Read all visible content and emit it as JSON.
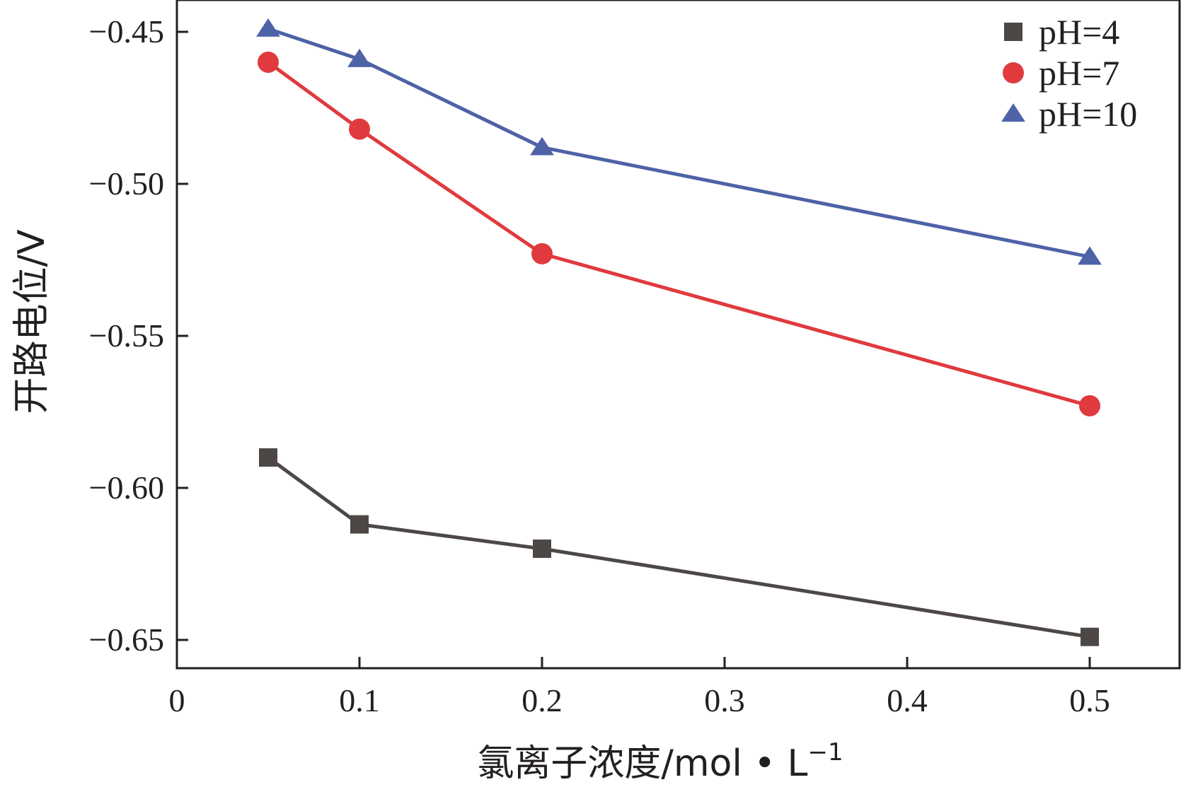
{
  "chart_data": {
    "type": "line",
    "xlabel": "氯离子浓度/mol • L",
    "xlabel_sup": "−1",
    "ylabel": "开路电位/V",
    "xlim": [
      0,
      0.55
    ],
    "ylim": [
      -0.66,
      -0.44
    ],
    "xticks": [
      0,
      0.1,
      0.2,
      0.3,
      0.4,
      0.5
    ],
    "xtick_labels": [
      "0",
      "0.1",
      "0.2",
      "0.3",
      "0.4",
      "0.5"
    ],
    "yticks": [
      -0.45,
      -0.5,
      -0.55,
      -0.6,
      -0.65
    ],
    "ytick_labels": [
      "−0.45",
      "−0.50",
      "−0.55",
      "−0.60",
      "−0.65"
    ],
    "grid": false,
    "legend_position": "top-right",
    "series": [
      {
        "name": "pH=4",
        "color": "#4d4846",
        "marker": "square",
        "x": [
          0.05,
          0.1,
          0.2,
          0.5
        ],
        "y": [
          -0.59,
          -0.612,
          -0.62,
          -0.649
        ]
      },
      {
        "name": "pH=7",
        "color": "#e03a3e",
        "marker": "circle",
        "x": [
          0.05,
          0.1,
          0.2,
          0.5
        ],
        "y": [
          -0.46,
          -0.482,
          -0.523,
          -0.573
        ]
      },
      {
        "name": "pH=10",
        "color": "#4e62a7",
        "marker": "triangle",
        "x": [
          0.05,
          0.1,
          0.2,
          0.5
        ],
        "y": [
          -0.449,
          -0.459,
          -0.488,
          -0.524
        ]
      }
    ]
  }
}
